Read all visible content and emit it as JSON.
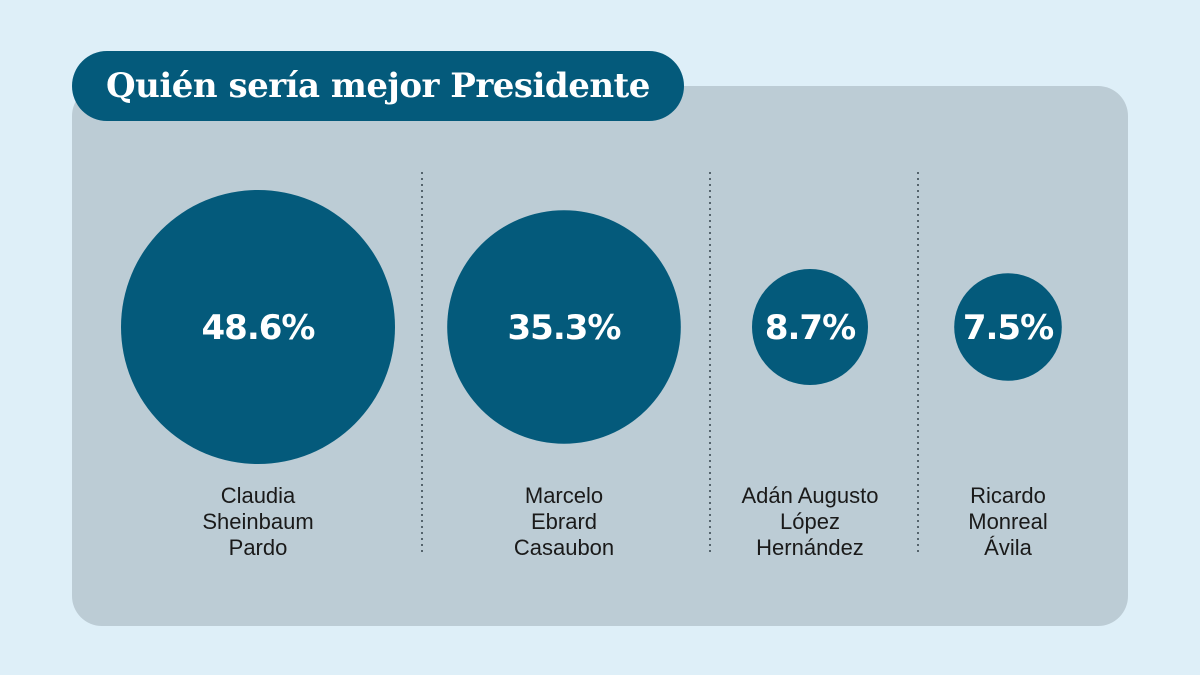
{
  "title": "Quién sería mejor Presidente",
  "colors": {
    "page_bg": "#deeff8",
    "card_bg": "#bcccd5",
    "accent": "#045a7b",
    "divider": "#55646d"
  },
  "chart_data": {
    "type": "bubble",
    "title": "Quién sería mejor Presidente",
    "unit": "%",
    "categories": [
      [
        "Claudia",
        "Sheinbaum",
        "Pardo"
      ],
      [
        "Marcelo",
        "Ebrard",
        "Casaubon"
      ],
      [
        "Adán Augusto",
        "López",
        "Hernández"
      ],
      [
        "Ricardo",
        "Monreal",
        "Ávila"
      ]
    ],
    "values": [
      48.6,
      35.3,
      8.7,
      7.5
    ],
    "value_labels": [
      "48.6%",
      "35.3%",
      "8.7%",
      "7.5%"
    ]
  }
}
